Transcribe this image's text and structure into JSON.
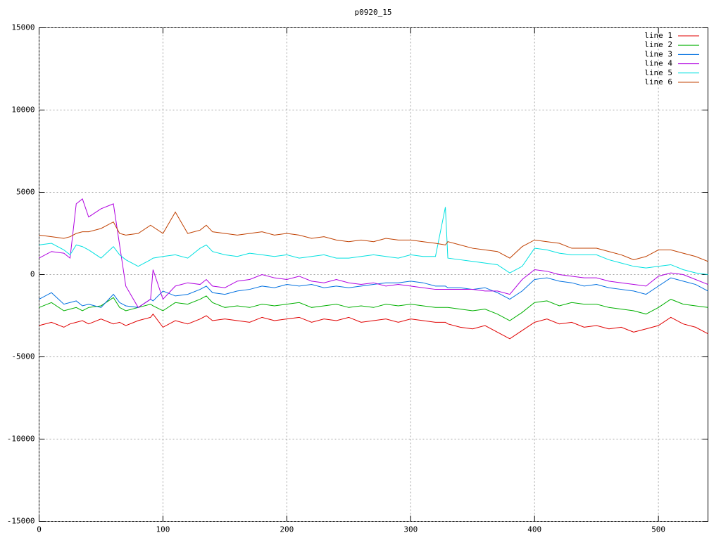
{
  "chart_data": {
    "type": "line",
    "title": "p0920_15",
    "x": [
      0,
      10,
      20,
      25,
      30,
      35,
      40,
      50,
      60,
      65,
      70,
      80,
      90,
      92,
      100,
      110,
      120,
      130,
      135,
      140,
      150,
      160,
      170,
      180,
      190,
      200,
      210,
      220,
      230,
      240,
      250,
      260,
      270,
      280,
      290,
      300,
      310,
      320,
      328,
      330,
      340,
      350,
      360,
      370,
      380,
      390,
      400,
      410,
      420,
      430,
      440,
      450,
      460,
      470,
      480,
      490,
      500,
      510,
      520,
      530,
      540
    ],
    "xlim": [
      0,
      540
    ],
    "xticks": [
      0,
      100,
      200,
      300,
      400,
      500
    ],
    "ylim": [
      -15000,
      15000
    ],
    "yticks": [
      -15000,
      -10000,
      -5000,
      0,
      5000,
      10000,
      15000
    ],
    "grid": true,
    "legend": "top-right",
    "series": [
      {
        "name": "line 1",
        "color": "#e00000",
        "values": [
          -3100,
          -2900,
          -3200,
          -3000,
          -2900,
          -2800,
          -3000,
          -2700,
          -3000,
          -2900,
          -3100,
          -2800,
          -2600,
          -2400,
          -3200,
          -2800,
          -3000,
          -2700,
          -2500,
          -2800,
          -2700,
          -2800,
          -2900,
          -2600,
          -2800,
          -2700,
          -2600,
          -2900,
          -2700,
          -2800,
          -2600,
          -2900,
          -2800,
          -2700,
          -2900,
          -2700,
          -2800,
          -2900,
          -2900,
          -3000,
          -3200,
          -3300,
          -3100,
          -3500,
          -3900,
          -3400,
          -2900,
          -2700,
          -3000,
          -2900,
          -3200,
          -3100,
          -3300,
          -3200,
          -3500,
          -3300,
          -3100,
          -2600,
          -3000,
          -3200,
          -3600
        ]
      },
      {
        "name": "line 2",
        "color": "#00b000",
        "values": [
          -2000,
          -1700,
          -2200,
          -2100,
          -2000,
          -2200,
          -2000,
          -1900,
          -1400,
          -2000,
          -2200,
          -2000,
          -1800,
          -1900,
          -2200,
          -1700,
          -1800,
          -1500,
          -1300,
          -1700,
          -2000,
          -1900,
          -2000,
          -1800,
          -1900,
          -1800,
          -1700,
          -2000,
          -1900,
          -1800,
          -2000,
          -1900,
          -2000,
          -1800,
          -1900,
          -1800,
          -1900,
          -2000,
          -2000,
          -2000,
          -2100,
          -2200,
          -2100,
          -2400,
          -2800,
          -2300,
          -1700,
          -1600,
          -1900,
          -1700,
          -1800,
          -1800,
          -2000,
          -2100,
          -2200,
          -2400,
          -2000,
          -1500,
          -1800,
          -1900,
          -2000
        ]
      },
      {
        "name": "line 3",
        "color": "#0070e0",
        "values": [
          -1500,
          -1100,
          -1800,
          -1700,
          -1600,
          -1900,
          -1800,
          -2000,
          -1200,
          -1700,
          -1900,
          -2000,
          -1500,
          -1600,
          -1000,
          -1300,
          -1200,
          -900,
          -700,
          -1100,
          -1200,
          -1000,
          -900,
          -700,
          -800,
          -600,
          -700,
          -600,
          -800,
          -700,
          -800,
          -700,
          -600,
          -500,
          -500,
          -400,
          -500,
          -700,
          -700,
          -800,
          -800,
          -900,
          -800,
          -1100,
          -1500,
          -1000,
          -300,
          -200,
          -400,
          -500,
          -700,
          -600,
          -800,
          -900,
          -1000,
          -1200,
          -700,
          -200,
          -400,
          -600,
          -1000
        ]
      },
      {
        "name": "line 4",
        "color": "#b000e0",
        "values": [
          1000,
          1400,
          1300,
          1000,
          4300,
          4600,
          3500,
          4000,
          4300,
          1800,
          -700,
          -2000,
          -1500,
          300,
          -1500,
          -700,
          -500,
          -600,
          -300,
          -700,
          -800,
          -400,
          -300,
          0,
          -200,
          -300,
          -100,
          -400,
          -500,
          -300,
          -500,
          -600,
          -500,
          -700,
          -600,
          -700,
          -800,
          -900,
          -900,
          -900,
          -900,
          -900,
          -1000,
          -1000,
          -1200,
          -300,
          300,
          200,
          0,
          -100,
          -200,
          -200,
          -400,
          -500,
          -600,
          -700,
          -100,
          100,
          0,
          -300,
          -600
        ]
      },
      {
        "name": "line 5",
        "color": "#00e0e0",
        "values": [
          1800,
          1900,
          1500,
          1200,
          1800,
          1700,
          1500,
          1000,
          1700,
          1200,
          900,
          500,
          900,
          1000,
          1100,
          1200,
          1000,
          1600,
          1800,
          1400,
          1200,
          1100,
          1300,
          1200,
          1100,
          1200,
          1000,
          1100,
          1200,
          1000,
          1000,
          1100,
          1200,
          1100,
          1000,
          1200,
          1100,
          1100,
          4100,
          1000,
          900,
          800,
          700,
          600,
          100,
          500,
          1600,
          1500,
          1300,
          1200,
          1200,
          1200,
          900,
          700,
          500,
          400,
          500,
          600,
          300,
          100,
          0
        ]
      },
      {
        "name": "line 6",
        "color": "#c04000",
        "values": [
          2400,
          2300,
          2200,
          2300,
          2500,
          2600,
          2600,
          2800,
          3200,
          2500,
          2400,
          2500,
          3000,
          2900,
          2500,
          3800,
          2500,
          2700,
          3000,
          2600,
          2500,
          2400,
          2500,
          2600,
          2400,
          2500,
          2400,
          2200,
          2300,
          2100,
          2000,
          2100,
          2000,
          2200,
          2100,
          2100,
          2000,
          1900,
          1800,
          2000,
          1800,
          1600,
          1500,
          1400,
          1000,
          1700,
          2100,
          2000,
          1900,
          1600,
          1600,
          1600,
          1400,
          1200,
          900,
          1100,
          1500,
          1500,
          1300,
          1100,
          800
        ]
      }
    ]
  }
}
